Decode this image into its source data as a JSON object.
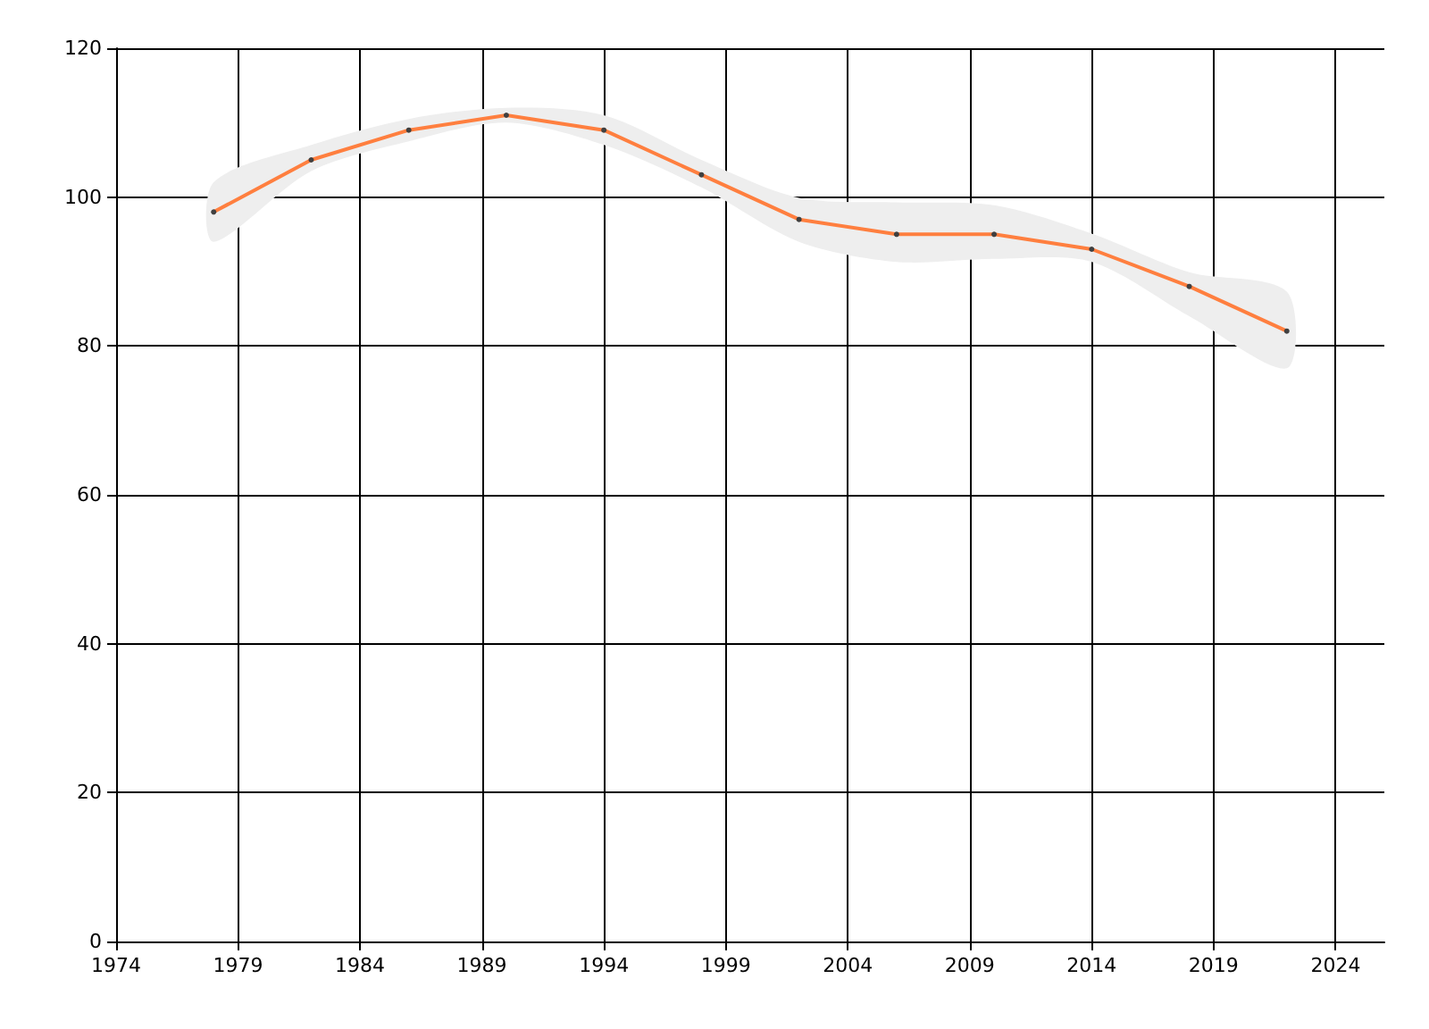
{
  "chart_data": {
    "type": "line",
    "x": [
      1978,
      1982,
      1986,
      1990,
      1994,
      1998,
      2002,
      2006,
      2010,
      2014,
      2018,
      2022
    ],
    "series": [
      {
        "color": "#ff7f3f",
        "values": [
          98,
          105,
          109,
          111,
          109,
          103,
          97,
          95,
          95,
          93,
          88,
          82
        ],
        "lower": [
          94,
          103.5,
          107.5,
          110,
          107,
          101.3,
          94,
          91.3,
          91.7,
          91.3,
          84,
          77
        ],
        "upper": [
          102,
          107,
          110.5,
          112,
          111,
          105,
          99.9,
          99.3,
          98.9,
          95.1,
          89.9,
          87.3
        ]
      }
    ],
    "xlim": [
      1974,
      2026
    ],
    "xticks": [
      1974,
      1979,
      1984,
      1989,
      1994,
      1999,
      2004,
      2009,
      2014,
      2019,
      2024
    ],
    "ylim": [
      0,
      120
    ],
    "yticks": [
      0,
      20,
      40,
      60,
      80,
      100,
      120
    ],
    "grid": true,
    "marker": "circle",
    "line_style": "solid"
  }
}
